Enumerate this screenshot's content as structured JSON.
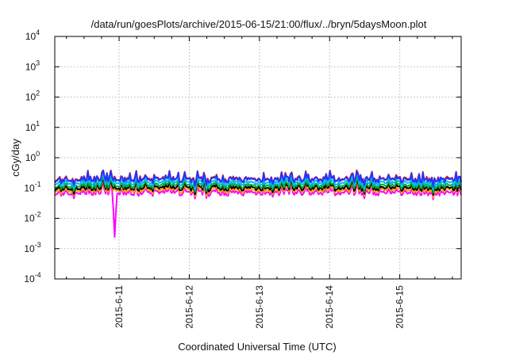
{
  "chart_data": {
    "type": "line",
    "title": "/data/run/goesPlots/archive/2015-06-15/21:00/flux/../bryn/5daysMoon.plot",
    "xlabel": "Coordinated Universal Time (UTC)",
    "ylabel": "cGy/day",
    "y_scale": "log",
    "ylim": [
      0.0001,
      10000
    ],
    "xlim": [
      "2015-06-10 02:00",
      "2015-06-15 21:00"
    ],
    "grid": true,
    "legend": "none",
    "x_ticks": [
      "2015-6-11",
      "2015-6-12",
      "2015-6-13",
      "2015-6-14",
      "2015-6-15"
    ],
    "y_ticks": [
      {
        "base": "10",
        "exp": "-4"
      },
      {
        "base": "10",
        "exp": "-3"
      },
      {
        "base": "10",
        "exp": "-2"
      },
      {
        "base": "10",
        "exp": "-1"
      },
      {
        "base": "10",
        "exp": "0"
      },
      {
        "base": "10",
        "exp": "1"
      },
      {
        "base": "10",
        "exp": "2"
      },
      {
        "base": "10",
        "exp": "3"
      },
      {
        "base": "10",
        "exp": "4"
      }
    ],
    "series": [
      {
        "color": "#ff00ff",
        "baseline": 0.07,
        "spikes": [
          {
            "x": "2015-06-10 22:30",
            "y": 0.0022
          }
        ]
      },
      {
        "color": "#ffa500",
        "baseline": 0.085
      },
      {
        "color": "#000000",
        "baseline": 0.1
      },
      {
        "color": "#00aa44",
        "baseline": 0.12
      },
      {
        "color": "#00bbee",
        "baseline": 0.15
      },
      {
        "color": "#dd2222",
        "baseline": 0.2
      },
      {
        "color": "#2233ff",
        "baseline": 0.19
      }
    ]
  }
}
